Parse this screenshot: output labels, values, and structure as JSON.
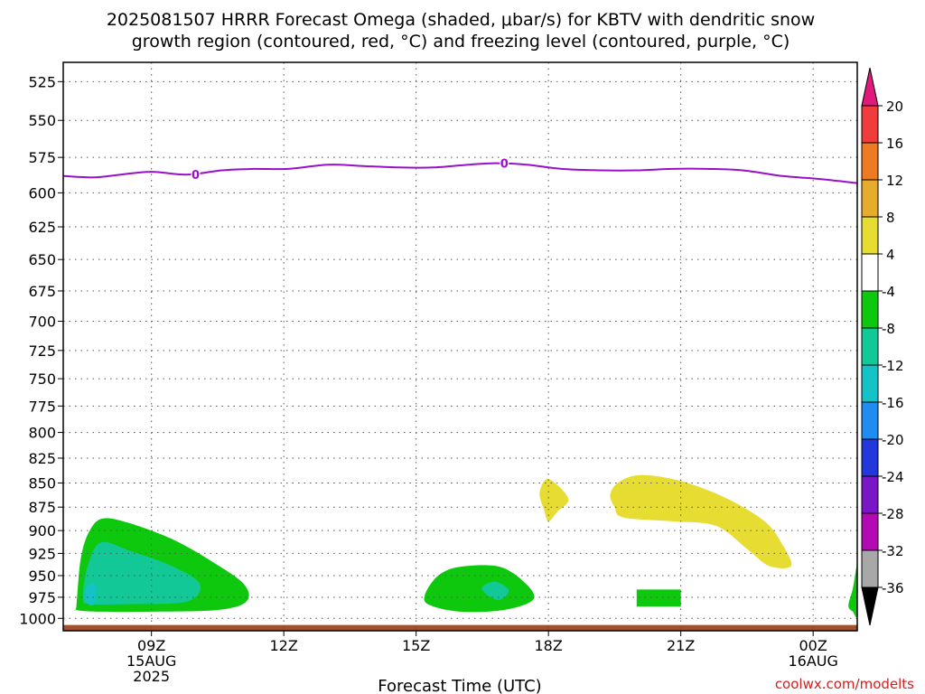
{
  "title_lines": [
    "2025081507 HRRR Forecast Omega (shaded, μbar/s) for KBTV with dendritic snow",
    "growth region (contoured, red, °C) and freezing level (contoured, purple, °C)"
  ],
  "credit": "coolwx.com/modelts",
  "chart_data": {
    "type": "heatmap",
    "title": "2025081507 HRRR Forecast Omega (shaded, μbar/s) for KBTV with dendritic snow growth region (contoured, red, °C) and freezing level (contoured, purple, °C)",
    "xlabel": "Forecast Time (UTC)",
    "ylabel": "",
    "x_range_hours_from_15AUG_00Z": [
      7,
      25
    ],
    "y_range_hPa": [
      1015,
      513
    ],
    "y_scale": "log-pressure",
    "y_ticks": [
      525,
      550,
      575,
      600,
      625,
      650,
      675,
      700,
      725,
      750,
      775,
      800,
      825,
      850,
      875,
      900,
      925,
      950,
      975,
      1000
    ],
    "x_ticks": [
      {
        "hour": 9,
        "labels": [
          "09Z",
          "15AUG",
          "2025"
        ]
      },
      {
        "hour": 12,
        "labels": [
          "12Z"
        ]
      },
      {
        "hour": 15,
        "labels": [
          "15Z"
        ]
      },
      {
        "hour": 18,
        "labels": [
          "18Z"
        ]
      },
      {
        "hour": 21,
        "labels": [
          "21Z"
        ]
      },
      {
        "hour": 24,
        "labels": [
          "00Z",
          "16AUG"
        ]
      }
    ],
    "grid": true,
    "colorbar": {
      "placement": "right",
      "labels": [
        "20",
        "16",
        "12",
        "8",
        "4",
        "-4",
        "-8",
        "-12",
        "-16",
        "-20",
        "-24",
        "-28",
        "-32",
        "-36"
      ],
      "bands": [
        {
          "range": "> 20",
          "color": "#e0197a"
        },
        {
          "range": "16 to 20",
          "color": "#f03c3c"
        },
        {
          "range": "12 to 16",
          "color": "#ee7a22"
        },
        {
          "range": "8 to 12",
          "color": "#e7ab2e"
        },
        {
          "range": "4 to 8",
          "color": "#e6dc32"
        },
        {
          "range": "-4 to 4",
          "color": "#ffffff"
        },
        {
          "range": "-8 to -4",
          "color": "#0ec80e"
        },
        {
          "range": "-12 to -8",
          "color": "#12c896"
        },
        {
          "range": "-16 to -12",
          "color": "#14c3c8"
        },
        {
          "range": "-20 to -16",
          "color": "#1e8cf0"
        },
        {
          "range": "-24 to -20",
          "color": "#2238dc"
        },
        {
          "range": "-28 to -24",
          "color": "#7a16c8"
        },
        {
          "range": "-32 to -28",
          "color": "#b40ab4"
        },
        {
          "range": "-36 to -32",
          "color": "#a8a8a8"
        },
        {
          "range": "< -36",
          "color": "#000000"
        }
      ]
    },
    "freezing_level": {
      "label": "0",
      "color": "#9a10c8",
      "points": [
        [
          7.0,
          588
        ],
        [
          7.7,
          589
        ],
        [
          8.3,
          587
        ],
        [
          9.0,
          585
        ],
        [
          9.8,
          587
        ],
        [
          10.6,
          584
        ],
        [
          11.3,
          583
        ],
        [
          12.1,
          583
        ],
        [
          13.0,
          580
        ],
        [
          13.8,
          581
        ],
        [
          14.6,
          582
        ],
        [
          15.4,
          582
        ],
        [
          16.2,
          580
        ],
        [
          16.8,
          579
        ],
        [
          17.5,
          580
        ],
        [
          18.3,
          583
        ],
        [
          19.2,
          584
        ],
        [
          20.0,
          584
        ],
        [
          20.8,
          583
        ],
        [
          21.6,
          583
        ],
        [
          22.4,
          584
        ],
        [
          23.3,
          588
        ],
        [
          24.1,
          590
        ],
        [
          25.0,
          593
        ]
      ],
      "label_positions": [
        [
          10.0,
          587
        ],
        [
          17.0,
          579
        ]
      ]
    },
    "omega_regions": [
      {
        "value_band": "-8 to -4",
        "color": "#0ec80e",
        "points": [
          [
            7.3,
            985
          ],
          [
            7.4,
            930
          ],
          [
            7.6,
            900
          ],
          [
            7.9,
            887
          ],
          [
            8.5,
            892
          ],
          [
            9.5,
            910
          ],
          [
            10.4,
            935
          ],
          [
            11.1,
            960
          ],
          [
            11.15,
            980
          ],
          [
            10.5,
            990
          ],
          [
            9.0,
            992
          ],
          [
            7.8,
            992
          ],
          [
            7.3,
            990
          ]
        ]
      },
      {
        "value_band": "-12 to -8",
        "color": "#12c896",
        "points": [
          [
            7.45,
            975
          ],
          [
            7.55,
            940
          ],
          [
            7.85,
            913
          ],
          [
            8.5,
            922
          ],
          [
            9.5,
            940
          ],
          [
            10.1,
            960
          ],
          [
            9.8,
            980
          ],
          [
            8.5,
            983
          ],
          [
            7.6,
            983
          ]
        ]
      },
      {
        "value_band": "-16 to -12",
        "color": "#14c3c8",
        "points": [
          [
            7.5,
            970
          ],
          [
            7.6,
            960
          ],
          [
            7.75,
            963
          ],
          [
            7.7,
            983
          ],
          [
            7.55,
            982
          ]
        ]
      },
      {
        "value_band": "-8 to -4",
        "color": "#0ec80e",
        "points": [
          [
            15.2,
            972
          ],
          [
            15.5,
            950
          ],
          [
            16.0,
            940
          ],
          [
            16.9,
            940
          ],
          [
            17.5,
            960
          ],
          [
            17.65,
            978
          ],
          [
            17.0,
            990
          ],
          [
            16.0,
            992
          ],
          [
            15.3,
            984
          ]
        ]
      },
      {
        "value_band": "-12 to -8",
        "color": "#12c896",
        "points": [
          [
            16.5,
            963
          ],
          [
            16.8,
            957
          ],
          [
            17.1,
            967
          ],
          [
            16.9,
            978
          ],
          [
            16.6,
            972
          ]
        ]
      },
      {
        "value_band": "-8 to -4",
        "color": "#0ec80e",
        "points": [
          [
            20.0,
            966
          ],
          [
            21.0,
            966
          ],
          [
            21.0,
            986
          ],
          [
            20.0,
            986
          ]
        ]
      },
      {
        "value_band": "-8 to -4",
        "color": "#0ec80e",
        "points": [
          [
            25.0,
            940
          ],
          [
            24.9,
            965
          ],
          [
            24.8,
            985
          ],
          [
            24.9,
            992
          ],
          [
            25.0,
            995
          ]
        ]
      },
      {
        "value_band": "4 to 8",
        "color": "#e6dc32",
        "points": [
          [
            17.8,
            860
          ],
          [
            18.0,
            846
          ],
          [
            18.45,
            866
          ],
          [
            18.2,
            880
          ],
          [
            18.0,
            890
          ],
          [
            17.9,
            878
          ]
        ]
      },
      {
        "value_band": "4 to 8",
        "color": "#e6dc32",
        "points": [
          [
            19.4,
            862
          ],
          [
            19.6,
            849
          ],
          [
            20.1,
            842
          ],
          [
            21.0,
            848
          ],
          [
            22.0,
            865
          ],
          [
            22.9,
            890
          ],
          [
            23.3,
            915
          ],
          [
            23.5,
            939
          ],
          [
            23.0,
            939
          ],
          [
            22.5,
            920
          ],
          [
            21.8,
            895
          ],
          [
            20.8,
            890
          ],
          [
            19.7,
            886
          ],
          [
            19.5,
            875
          ]
        ]
      }
    ],
    "ground_surface": {
      "color": "#a0522d",
      "pressure_hPa": 1008
    }
  }
}
